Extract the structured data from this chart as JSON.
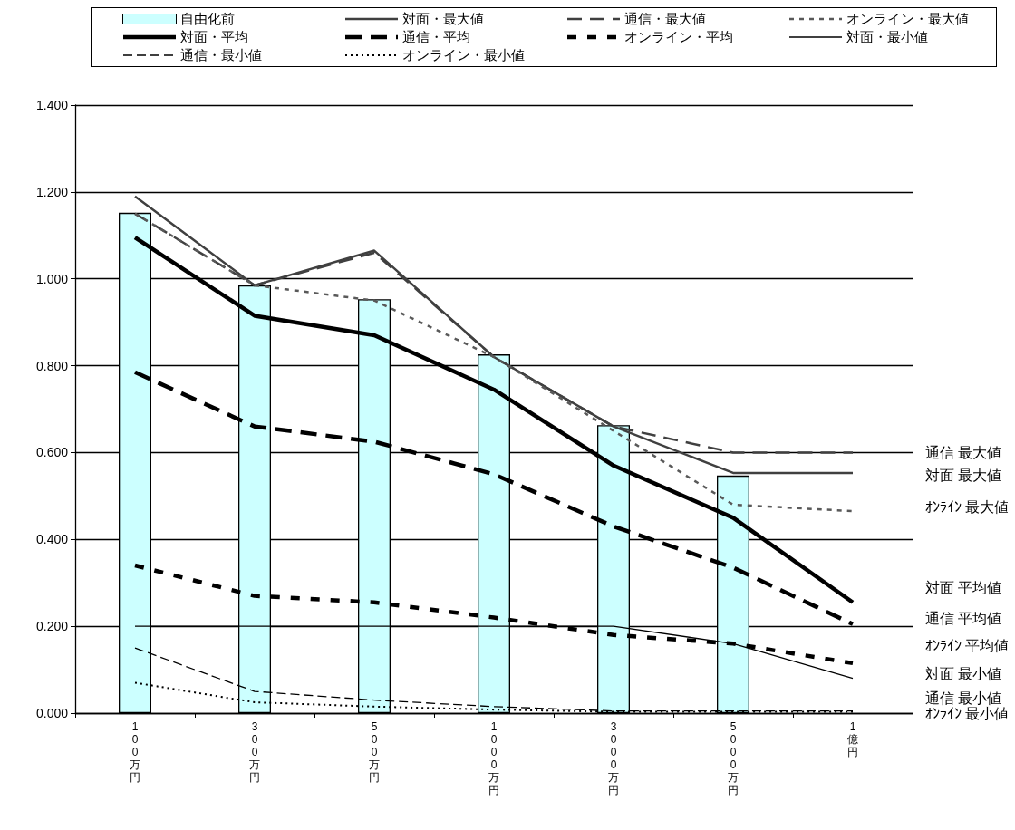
{
  "chart_data": {
    "type": "line",
    "categories": [
      "100万円",
      "300万円",
      "500万円",
      "1000万円",
      "3000万円",
      "5000万円",
      "1億円"
    ],
    "series": [
      {
        "name": "自由化前",
        "type": "bar",
        "color": "#ccffff",
        "values": [
          1.152,
          0.985,
          0.953,
          0.826,
          0.663,
          0.547,
          null
        ]
      },
      {
        "name": "対面・最大値",
        "color": "#404040",
        "line_style": "solid",
        "values": [
          1.19,
          0.985,
          1.065,
          0.82,
          0.66,
          0.553,
          0.553
        ]
      },
      {
        "name": "通信・最大値",
        "color": "#404040",
        "line_style": "dashed",
        "values": [
          1.15,
          0.985,
          1.06,
          0.82,
          0.66,
          0.6,
          0.6
        ]
      },
      {
        "name": "オンライン・最大値",
        "color": "#595959",
        "line_style": "dashed",
        "values": [
          1.15,
          0.985,
          0.95,
          0.82,
          0.65,
          0.48,
          0.465
        ]
      },
      {
        "name": "対面・平均",
        "color": "#000000",
        "line_style": "solid",
        "values": [
          1.095,
          0.915,
          0.87,
          0.745,
          0.57,
          0.45,
          0.255
        ]
      },
      {
        "name": "通信・平均",
        "color": "#000000",
        "line_style": "dashed",
        "values": [
          0.785,
          0.66,
          0.625,
          0.55,
          0.43,
          0.335,
          0.205
        ]
      },
      {
        "name": "オンライン・平均",
        "color": "#000000",
        "line_style": "dashed",
        "values": [
          0.34,
          0.27,
          0.255,
          0.22,
          0.18,
          0.16,
          0.115
        ]
      },
      {
        "name": "対面・最小値",
        "color": "#000000",
        "line_style": "solid",
        "values": [
          0.2,
          0.2,
          0.2,
          0.2,
          0.2,
          0.16,
          0.08
        ]
      },
      {
        "name": "通信・最小値",
        "color": "#000000",
        "line_style": "dashed",
        "values": [
          0.15,
          0.05,
          0.03,
          0.015,
          0.005,
          0.005,
          0.005
        ]
      },
      {
        "name": "オンライン・最小値",
        "color": "#000000",
        "line_style": "dotted",
        "values": [
          0.07,
          0.025,
          0.015,
          0.008,
          0.003,
          0.003,
          0.003
        ]
      }
    ],
    "ylim": [
      0,
      1.4
    ],
    "yticks": [
      {
        "value": 0,
        "label": "0.000"
      },
      {
        "value": 0.2,
        "label": "0.200"
      },
      {
        "value": 0.4,
        "label": "0.400"
      },
      {
        "value": 0.6,
        "label": "0.600"
      },
      {
        "value": 0.8,
        "label": "0.800"
      },
      {
        "value": 1.0,
        "label": "1.000"
      },
      {
        "value": 1.2,
        "label": "1.200"
      },
      {
        "value": 1.4,
        "label": "1.400"
      }
    ],
    "grid": "y",
    "legend": "top",
    "annotations": [
      "通信 最大値",
      "対面 最大値",
      "ｵﾝﾗｲﾝ 最大値",
      "対面 平均値",
      "通信 平均値",
      "ｵﾝﾗｲﾝ 平均値",
      "対面 最小値",
      "通信 最小値",
      "ｵﾝﾗｲﾝ 最小値"
    ]
  }
}
